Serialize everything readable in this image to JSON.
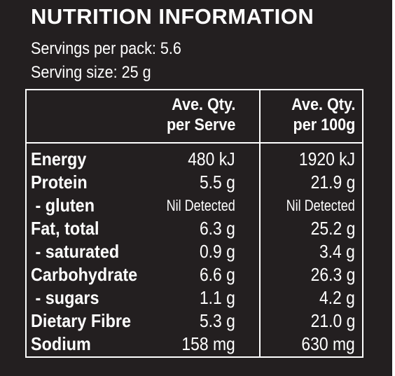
{
  "panel": {
    "title": "NUTRITION INFORMATION",
    "servings_per_pack": "Servings per pack: 5.6",
    "serving_size": "Serving size: 25 g"
  },
  "table": {
    "columns": [
      {
        "line1": "Ave. Qty.",
        "line2": "per Serve"
      },
      {
        "line1": "Ave. Qty.",
        "line2": "per 100g"
      }
    ],
    "rows": [
      {
        "label": "Energy",
        "per_serve": "480 kJ",
        "per_100g": "1920 kJ"
      },
      {
        "label": "Protein",
        "per_serve": "5.5 g",
        "per_100g": "21.9 g"
      },
      {
        "label": " - gluten",
        "per_serve": "Nil Detected",
        "per_100g": "Nil Detected"
      },
      {
        "label": "Fat, total",
        "per_serve": "6.3 g",
        "per_100g": "25.2 g"
      },
      {
        "label": " - saturated",
        "per_serve": "0.9 g",
        "per_100g": "3.4 g"
      },
      {
        "label": "Carbohydrate",
        "per_serve": "6.6 g",
        "per_100g": "26.3 g"
      },
      {
        "label": " - sugars",
        "per_serve": "1.1 g",
        "per_100g": "4.2 g"
      },
      {
        "label": "Dietary Fibre",
        "per_serve": "5.3 g",
        "per_100g": "21.0 g"
      },
      {
        "label": "Sodium",
        "per_serve": "158 mg",
        "per_100g": "630 mg"
      }
    ]
  },
  "colors": {
    "background": "#231f20",
    "text": "#ffffff"
  }
}
